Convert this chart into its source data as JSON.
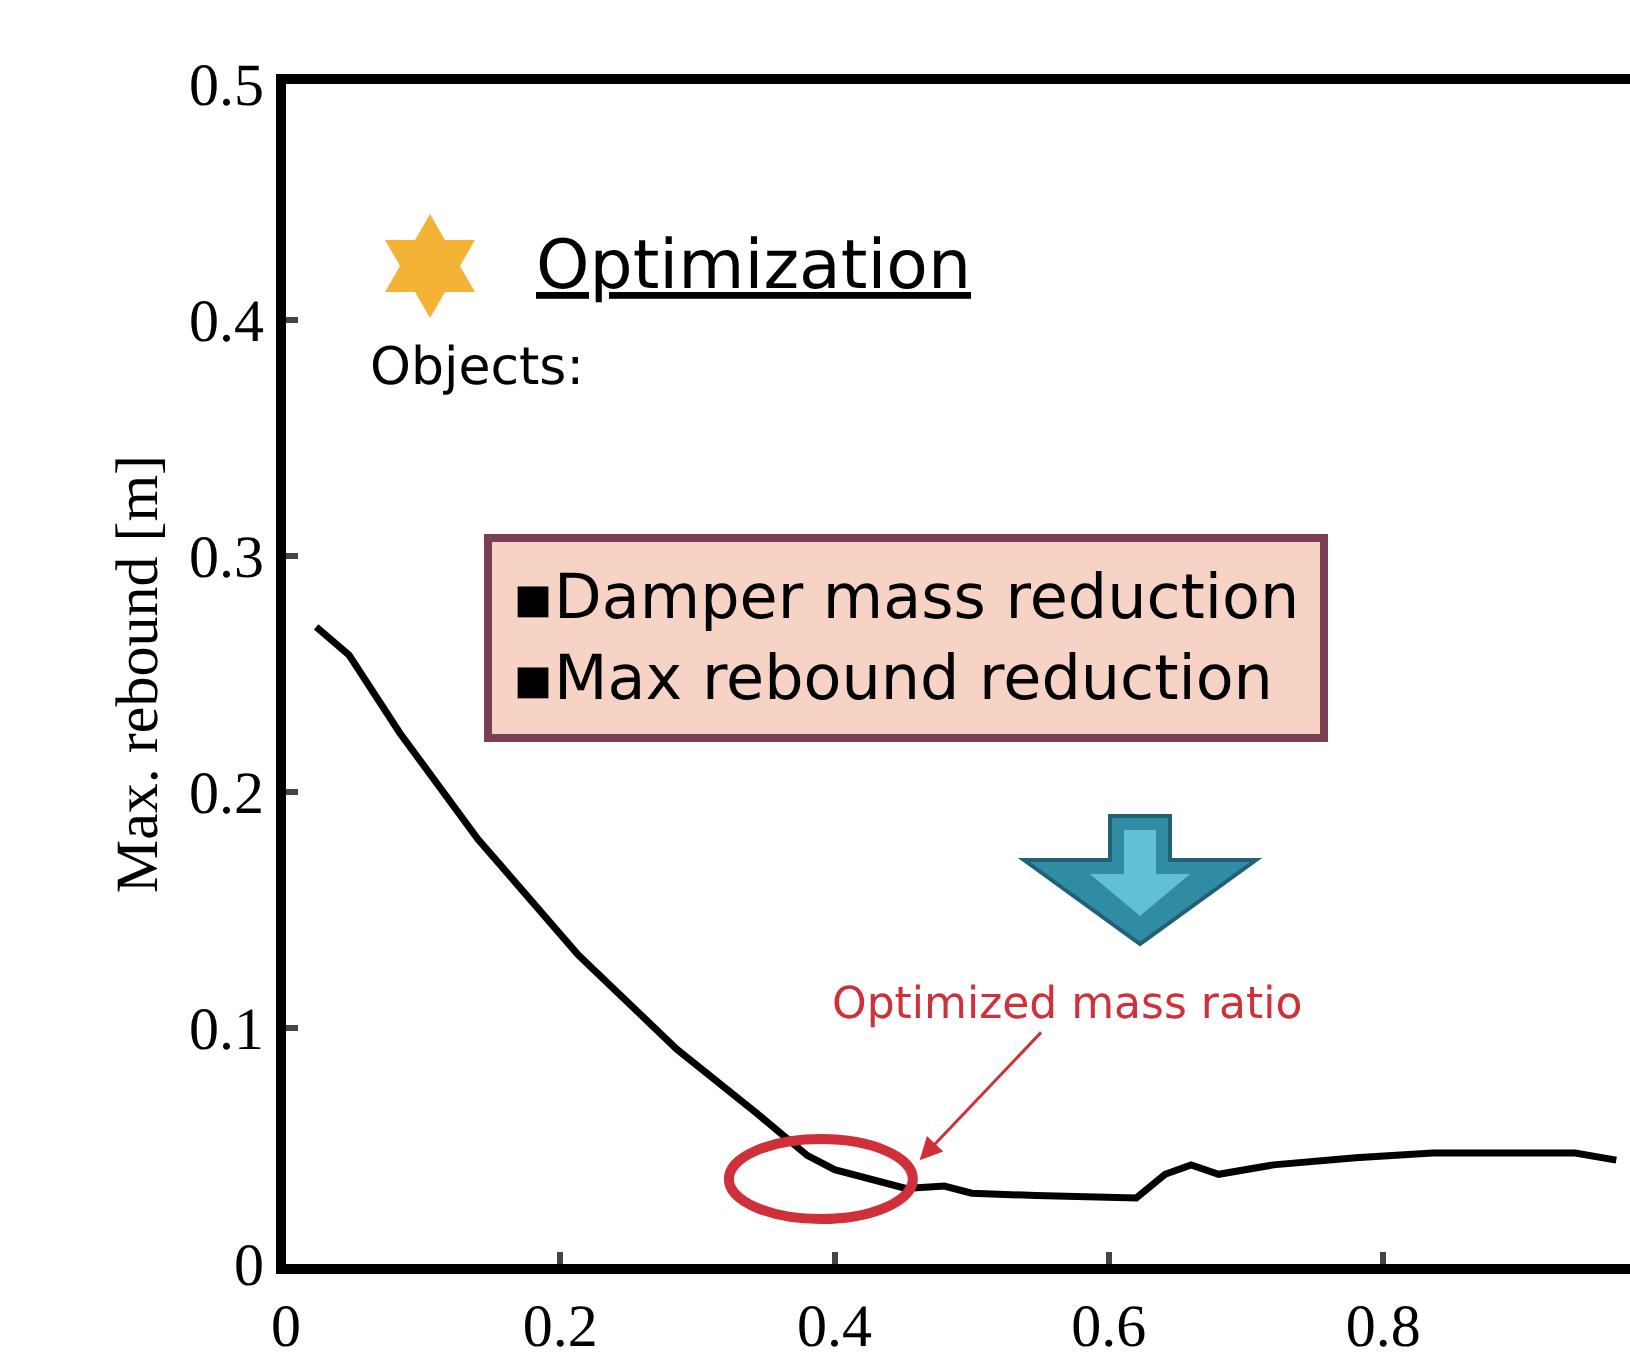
{
  "chart_data": {
    "type": "line",
    "ylabel": "Max. rebound [m]",
    "x": [
      0.022,
      0.046,
      0.083,
      0.14,
      0.213,
      0.285,
      0.343,
      0.38,
      0.4,
      0.452,
      0.48,
      0.5,
      0.547,
      0.62,
      0.641,
      0.66,
      0.68,
      0.72,
      0.78,
      0.836,
      0.894,
      0.94,
      0.97
    ],
    "series": [
      {
        "color": "#000000",
        "values": [
          0.27,
          0.258,
          0.225,
          0.18,
          0.131,
          0.091,
          0.064,
          0.046,
          0.04,
          0.032,
          0.033,
          0.03,
          0.029,
          0.028,
          0.038,
          0.042,
          0.038,
          0.042,
          0.045,
          0.047,
          0.047,
          0.047,
          0.044
        ]
      }
    ],
    "xlim": [
      0,
      0.98
    ],
    "xticks": [
      0,
      0.2,
      0.4,
      0.6,
      0.8
    ],
    "ylim": [
      0,
      0.5
    ],
    "yticks": [
      0,
      0.1,
      0.2,
      0.3,
      0.4,
      0.5
    ],
    "grid": false,
    "marker": "none",
    "line_style": "solid",
    "annotations": [
      "Optimization",
      "Objects:",
      "▪Damper mass reduction\n▪Max rebound reduction",
      "Optimized mass ratio"
    ]
  }
}
